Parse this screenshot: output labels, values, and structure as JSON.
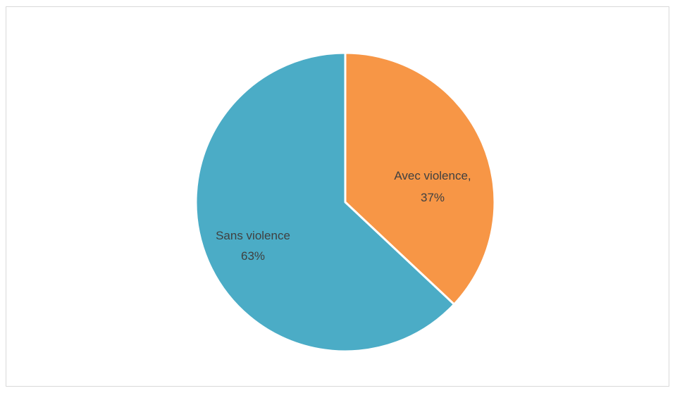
{
  "chart_data": {
    "type": "pie",
    "title": "",
    "categories": [
      "Avec violence",
      "Sans violence"
    ],
    "values": [
      37,
      63
    ],
    "colors": [
      "#f79646",
      "#4bacc6"
    ],
    "labels": [
      {
        "line1": "Avec violence,",
        "line2": "37%"
      },
      {
        "line1": "Sans violence",
        "line2": "63%"
      }
    ],
    "legend": "none",
    "start_angle_deg": 0,
    "direction": "clockwise"
  }
}
